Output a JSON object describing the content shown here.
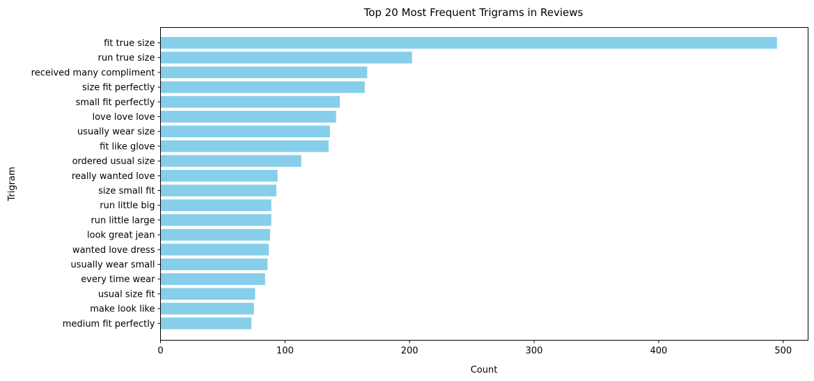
{
  "chart_data": {
    "type": "bar",
    "orientation": "horizontal",
    "title": "Top 20 Most Frequent Trigrams in Reviews",
    "xlabel": "Count",
    "ylabel": "Trigram",
    "xlim": [
      0,
      520
    ],
    "xticks": [
      0,
      100,
      200,
      300,
      400,
      500
    ],
    "grid": false,
    "bar_color": "#87ceeb",
    "categories": [
      "fit true size",
      "run true size",
      "received many compliment",
      "size fit perfectly",
      "small fit perfectly",
      "love love love",
      "usually wear size",
      "fit like glove",
      "ordered usual size",
      "really wanted love",
      "size small fit",
      "run little big",
      "run little large",
      "look great jean",
      "wanted love dress",
      "usually wear small",
      "every time wear",
      "usual size fit",
      "make look like",
      "medium fit perfectly"
    ],
    "values": [
      495,
      202,
      166,
      164,
      144,
      141,
      136,
      135,
      113,
      94,
      93,
      89,
      89,
      88,
      87,
      86,
      84,
      76,
      75,
      73
    ]
  }
}
